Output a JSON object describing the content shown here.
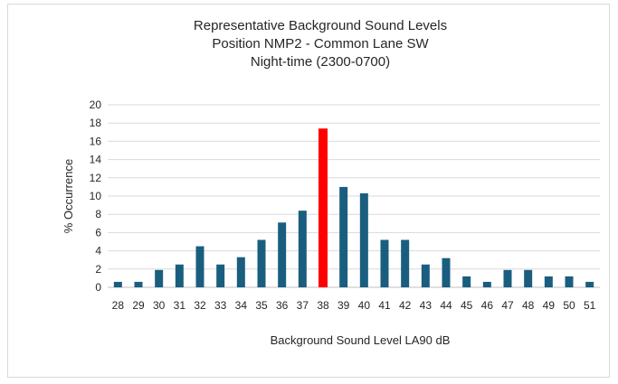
{
  "chart_data": {
    "type": "bar",
    "title_lines": [
      "Representative  Background Sound Levels",
      "Position  NMP2 - Common Lane SW",
      "Night-time   (2300-0700)"
    ],
    "xlabel": "Background Sound Level LA90 dB",
    "ylabel": "% Occurrence",
    "ylim": [
      0,
      20
    ],
    "yticks": [
      0,
      2,
      4,
      6,
      8,
      10,
      12,
      14,
      16,
      18,
      20
    ],
    "categories": [
      "28",
      "29",
      "30",
      "31",
      "32",
      "33",
      "34",
      "35",
      "36",
      "37",
      "38",
      "39",
      "40",
      "41",
      "42",
      "43",
      "44",
      "45",
      "46",
      "47",
      "48",
      "49",
      "50",
      "51"
    ],
    "values": [
      0.6,
      0.6,
      1.9,
      2.5,
      4.5,
      2.5,
      3.3,
      5.2,
      7.1,
      8.4,
      17.4,
      11.0,
      10.3,
      5.2,
      5.2,
      2.5,
      3.2,
      1.2,
      0.6,
      1.9,
      1.9,
      1.2,
      1.2,
      0.6
    ],
    "highlight_category": "38",
    "grid": true,
    "colors": {
      "bar": "#1a5e7f",
      "highlight": "#ff0000",
      "grid": "#d9d9d9",
      "axis": "#bfbfbf"
    }
  }
}
